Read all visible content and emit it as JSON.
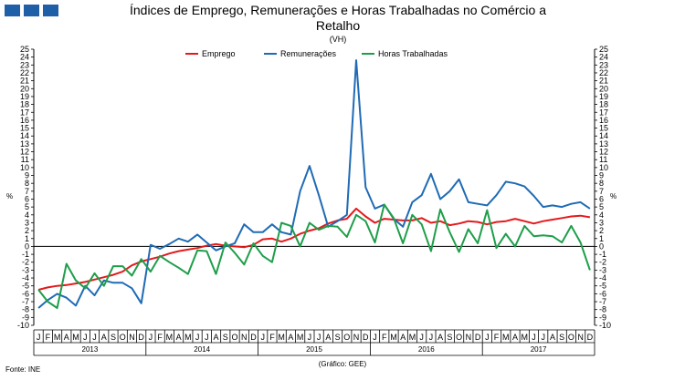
{
  "header": {
    "title_line1": "Índices de Emprego, Remunerações e Horas Trabalhadas no Comércio a",
    "title_line2": "Retalho",
    "subtitle": "(VH)"
  },
  "colors": {
    "logo": "#1f5fa8"
  },
  "axis": {
    "left_unit": "%",
    "right_unit": "%"
  },
  "footer": {
    "source": "Fonte: INE",
    "credit": "(Gráfico: GEE)"
  },
  "chart_data": {
    "type": "line",
    "title": "Índices de Emprego, Remunerações e Horas Trabalhadas no Comércio a Retalho",
    "subtitle": "(VH)",
    "ylim": [
      -10,
      25
    ],
    "ytick_step": 1,
    "grid": false,
    "legend_position": "top-center",
    "month_labels": [
      "J",
      "F",
      "M",
      "A",
      "M",
      "J",
      "J",
      "A",
      "S",
      "O",
      "N",
      "D"
    ],
    "years": [
      "2013",
      "2014",
      "2015",
      "2016",
      "2017"
    ],
    "x": [
      "2013-01",
      "2013-02",
      "2013-03",
      "2013-04",
      "2013-05",
      "2013-06",
      "2013-07",
      "2013-08",
      "2013-09",
      "2013-10",
      "2013-11",
      "2013-12",
      "2014-01",
      "2014-02",
      "2014-03",
      "2014-04",
      "2014-05",
      "2014-06",
      "2014-07",
      "2014-08",
      "2014-09",
      "2014-10",
      "2014-11",
      "2014-12",
      "2015-01",
      "2015-02",
      "2015-03",
      "2015-04",
      "2015-05",
      "2015-06",
      "2015-07",
      "2015-08",
      "2015-09",
      "2015-10",
      "2015-11",
      "2015-12",
      "2016-01",
      "2016-02",
      "2016-03",
      "2016-04",
      "2016-05",
      "2016-06",
      "2016-07",
      "2016-08",
      "2016-09",
      "2016-10",
      "2016-11",
      "2016-12",
      "2017-01",
      "2017-02",
      "2017-03",
      "2017-04",
      "2017-05",
      "2017-06",
      "2017-07",
      "2017-08",
      "2017-09",
      "2017-10",
      "2017-11",
      "2017-12"
    ],
    "series": [
      {
        "name": "Emprego",
        "color": "#e31a1c",
        "values": [
          -5.5,
          -5.2,
          -5.0,
          -4.9,
          -4.7,
          -4.5,
          -4.2,
          -3.9,
          -3.6,
          -3.2,
          -2.4,
          -1.9,
          -1.6,
          -1.3,
          -0.9,
          -0.6,
          -0.4,
          -0.2,
          0.1,
          0.3,
          0.1,
          0.0,
          -0.1,
          0.2,
          0.9,
          1.0,
          0.6,
          1.0,
          1.6,
          2.0,
          2.3,
          2.9,
          3.3,
          3.5,
          4.8,
          3.8,
          3.0,
          3.5,
          3.4,
          3.3,
          3.3,
          3.6,
          3.0,
          3.2,
          2.7,
          2.9,
          3.2,
          3.1,
          2.8,
          3.1,
          3.2,
          3.5,
          3.2,
          2.9,
          3.2,
          3.4,
          3.6,
          3.8,
          3.9,
          3.7
        ]
      },
      {
        "name": "Remunerações",
        "color": "#1f6bb5",
        "values": [
          -7.8,
          -6.8,
          -6.0,
          -6.5,
          -7.5,
          -5.0,
          -6.2,
          -4.3,
          -4.6,
          -4.6,
          -5.3,
          -7.2,
          0.2,
          -0.3,
          0.3,
          1.0,
          0.6,
          1.5,
          0.5,
          -0.5,
          0.0,
          0.4,
          2.8,
          1.8,
          1.8,
          2.8,
          1.8,
          1.5,
          7.0,
          10.2,
          6.5,
          2.5,
          3.2,
          4.0,
          23.6,
          7.5,
          4.8,
          5.3,
          3.5,
          2.5,
          5.6,
          6.5,
          9.2,
          6.0,
          7.0,
          8.5,
          5.6,
          5.4,
          5.2,
          6.5,
          8.2,
          8.0,
          7.6,
          6.4,
          5.0,
          5.2,
          5.0,
          5.4,
          5.6,
          4.8
        ]
      },
      {
        "name": "Horas Trabalhadas",
        "color": "#1e9e4a",
        "values": [
          -5.5,
          -7.0,
          -7.8,
          -2.2,
          -4.3,
          -5.3,
          -3.4,
          -5.0,
          -2.5,
          -2.5,
          -3.7,
          -1.6,
          -3.2,
          -1.2,
          -2.0,
          -2.7,
          -3.5,
          -0.5,
          -0.6,
          -3.5,
          0.5,
          -0.8,
          -2.3,
          0.4,
          -1.2,
          -2.0,
          3.0,
          2.6,
          0.0,
          3.0,
          2.1,
          2.6,
          2.5,
          1.2,
          4.0,
          3.2,
          0.5,
          5.3,
          3.6,
          0.4,
          4.0,
          2.8,
          -0.6,
          4.7,
          1.8,
          -0.7,
          2.2,
          0.4,
          4.6,
          -0.2,
          1.6,
          0.0,
          2.6,
          1.3,
          1.4,
          1.3,
          0.5,
          2.6,
          0.5,
          -3.0
        ]
      }
    ]
  }
}
